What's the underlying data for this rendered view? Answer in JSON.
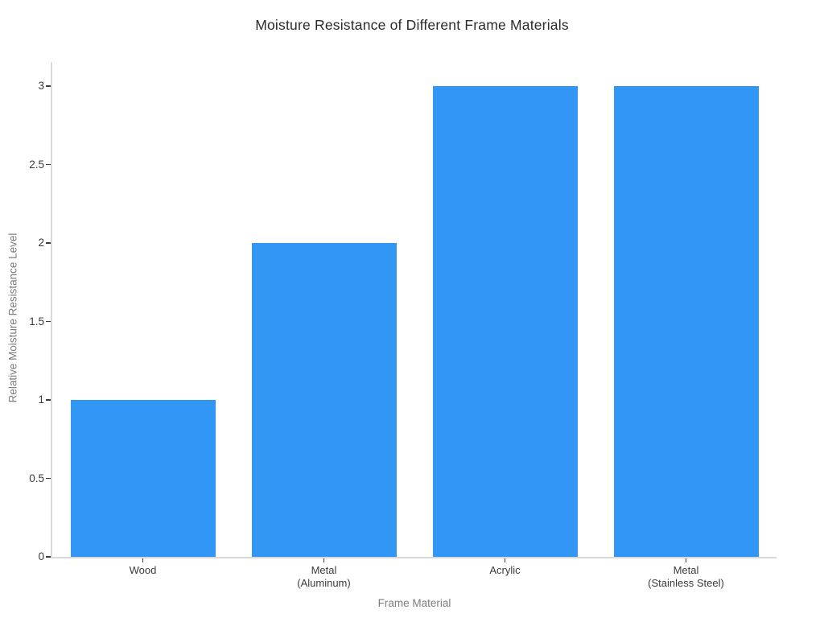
{
  "figure": {
    "background_color": "#ffffff"
  },
  "chart_data": {
    "type": "bar",
    "title": "Moisture Resistance of Different Frame Materials",
    "xlabel": "Frame Material",
    "ylabel": "Relative Moisture Resistance Level",
    "categories": [
      "Wood",
      "Metal\n(Aluminum)",
      "Acrylic",
      "Metal\n(Stainless Steel)"
    ],
    "values": [
      1,
      2,
      3,
      3
    ],
    "yticks": [
      0,
      0.5,
      1,
      1.5,
      2,
      2.5,
      3
    ],
    "ytick_labels": [
      "0",
      "0.5",
      "1",
      "1.5",
      "2",
      "2.5",
      "3"
    ],
    "ylim": [
      0,
      3.155
    ],
    "grid": false,
    "legend_position": "none",
    "bar_color": "#3296f5",
    "axis_line_color": "#d9d9d9",
    "tick_mark_color": "#3b3b3b",
    "tick_label_color": "#3b3b3b",
    "axis_title_color": "#7d7d7d",
    "title_color": "#2b2b2b"
  }
}
